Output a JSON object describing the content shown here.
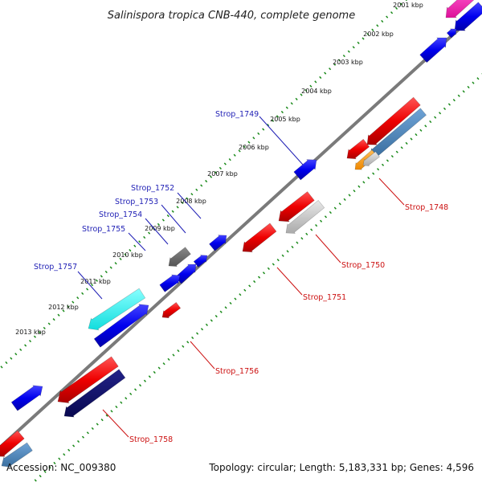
{
  "title": "Salinispora tropica CNB-440, complete genome",
  "footer": {
    "accession": "Accession: NC_009380",
    "summary": "Topology: circular; Length: 5,183,331 bp; Genes: 4,596"
  },
  "colors": {
    "forward_gene": "#1010ee",
    "reverse_gene": "#ee1111",
    "label_forward": "#1f1fb5",
    "label_reverse": "#cc1111",
    "cds_forward": "#11116e",
    "cds_reverse": "#4682b4",
    "ruler_dots": "#1a8a1a",
    "backbone": "#7a7a7a"
  },
  "ticks": [
    "2001 kbp",
    "2002 kbp",
    "2003 kbp",
    "2004 kbp",
    "2005 kbp",
    "2006 kbp",
    "2007 kbp",
    "2008 kbp",
    "2009 kbp",
    "2010 kbp",
    "2011 kbp",
    "2012 kbp",
    "2013 kbp"
  ],
  "gene_labels": {
    "forward": [
      "Strop_1749",
      "Strop_1752",
      "Strop_1753",
      "Strop_1754",
      "Strop_1755",
      "Strop_1757"
    ],
    "reverse": [
      "Strop_1748",
      "Strop_1750",
      "Strop_1751",
      "Strop_1756",
      "Strop_1758"
    ]
  }
}
